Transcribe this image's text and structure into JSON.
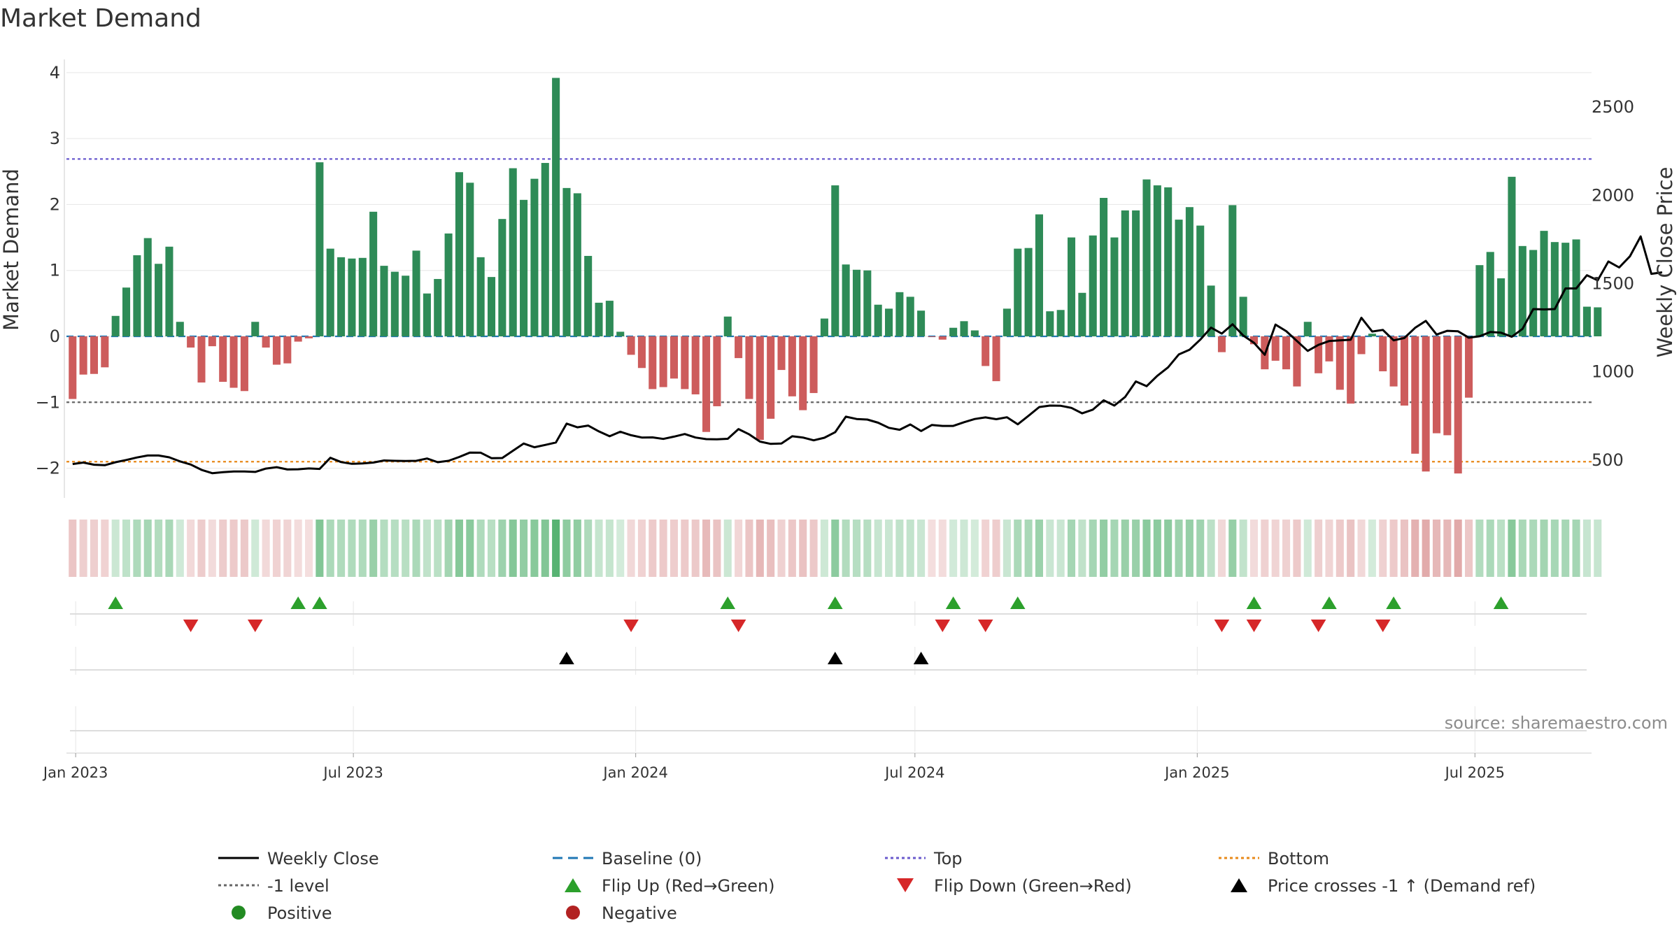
{
  "chart_data": {
    "type": "bar",
    "title": "Market Demand",
    "ylabel": "Market Demand",
    "y2label": "Weekly Close Price",
    "ylim": [
      -2.45,
      4.2
    ],
    "y2lim": [
      285,
      2770
    ],
    "yticks": [
      -2,
      -1,
      0,
      1,
      2,
      3,
      4
    ],
    "y2ticks": [
      500,
      1000,
      1500,
      2000,
      2500
    ],
    "x_range": [
      "2022-12-26",
      "2025-09-15"
    ],
    "x_ticks": [
      {
        "date": "2023-01-01",
        "label": "Jan 2023"
      },
      {
        "date": "2023-07-01",
        "label": "Jul 2023"
      },
      {
        "date": "2024-01-01",
        "label": "Jan 2024"
      },
      {
        "date": "2024-07-01",
        "label": "Jul 2024"
      },
      {
        "date": "2025-01-01",
        "label": "Jan 2025"
      },
      {
        "date": "2025-07-01",
        "label": "Jul 2025"
      }
    ],
    "start_week": "2022-12-30",
    "grid": true,
    "reference_lines": [
      {
        "name": "Baseline (0)",
        "axis": "left",
        "value": 0,
        "color": "#1f77b4",
        "style": "dashed"
      },
      {
        "name": "Top",
        "axis": "left",
        "value": 2.69,
        "color": "#6a5acd",
        "style": "dotted"
      },
      {
        "name": "-1 level",
        "axis": "left",
        "value": -1,
        "color": "#666666",
        "style": "dotted"
      },
      {
        "name": "Bottom",
        "axis": "right",
        "value": 490,
        "color": "#e8891a",
        "style": "dotted"
      }
    ],
    "series": [
      {
        "name": "Market Demand",
        "kind": "bar",
        "axis": "left",
        "colors": {
          "positive": "#2e8b57",
          "negative": "#cd5c5c"
        },
        "values": [
          -0.95,
          -0.58,
          -0.57,
          -0.47,
          0.31,
          0.74,
          1.23,
          1.49,
          1.1,
          1.36,
          0.22,
          -0.17,
          -0.7,
          -0.15,
          -0.69,
          -0.78,
          -0.83,
          0.22,
          -0.17,
          -0.43,
          -0.41,
          -0.08,
          -0.03,
          2.64,
          1.33,
          1.2,
          1.18,
          1.19,
          1.89,
          1.07,
          0.98,
          0.92,
          1.3,
          0.65,
          0.87,
          1.56,
          2.49,
          2.33,
          1.2,
          0.9,
          1.78,
          2.55,
          2.07,
          2.39,
          2.63,
          3.92,
          2.25,
          2.17,
          1.22,
          0.51,
          0.54,
          0.07,
          -0.28,
          -0.48,
          -0.8,
          -0.77,
          -0.64,
          -0.8,
          -0.88,
          -1.45,
          -1.06,
          0.3,
          -0.33,
          -0.95,
          -1.57,
          -1.25,
          -0.51,
          -0.91,
          -1.12,
          -0.86,
          0.27,
          2.29,
          1.09,
          1.01,
          1.0,
          0.48,
          0.42,
          0.67,
          0.6,
          0.39,
          -0.01,
          -0.05,
          0.13,
          0.23,
          0.09,
          -0.45,
          -0.68,
          0.42,
          1.33,
          1.34,
          1.85,
          0.38,
          0.4,
          1.5,
          0.66,
          1.53,
          2.1,
          1.5,
          1.91,
          1.91,
          2.38,
          2.29,
          2.26,
          1.77,
          1.96,
          1.68,
          0.77,
          -0.24,
          1.99,
          0.6,
          -0.12,
          -0.5,
          -0.37,
          -0.5,
          -0.76,
          0.22,
          -0.56,
          -0.38,
          -0.81,
          -1.02,
          -0.27,
          0.04,
          -0.53,
          -0.76,
          -1.05,
          -1.78,
          -2.05,
          -1.47,
          -1.5,
          -2.08,
          -0.93,
          1.08,
          1.28,
          0.88,
          2.42,
          1.37,
          1.31,
          1.6,
          1.43,
          1.42,
          1.47,
          0.45,
          0.44
        ]
      },
      {
        "name": "Weekly Close",
        "kind": "line",
        "axis": "right",
        "color": "#000000",
        "values": [
          477,
          485,
          473,
          470,
          487,
          500,
          514,
          525,
          525,
          515,
          492,
          474,
          444,
          425,
          431,
          435,
          435,
          432,
          451,
          459,
          446,
          447,
          452,
          449,
          512,
          488,
          478,
          480,
          485,
          497,
          495,
          494,
          495,
          508,
          487,
          495,
          517,
          542,
          541,
          510,
          511,
          552,
          593,
          572,
          585,
          599,
          706,
          685,
          695,
          662,
          634,
          660,
          640,
          627,
          628,
          619,
          632,
          647,
          627,
          618,
          617,
          620,
          675,
          645,
          604,
          591,
          593,
          634,
          627,
          611,
          626,
          657,
          745,
          732,
          729,
          711,
          682,
          671,
          701,
          664,
          698,
          693,
          693,
          714,
          732,
          741,
          731,
          742,
          702,
          750,
          800,
          808,
          807,
          795,
          764,
          785,
          838,
          808,
          857,
          945,
          918,
          977,
          1025,
          1098,
          1125,
          1182,
          1250,
          1216,
          1269,
          1205,
          1164,
          1096,
          1267,
          1230,
          1174,
          1118,
          1152,
          1174,
          1178,
          1181,
          1306,
          1228,
          1237,
          1178,
          1191,
          1249,
          1288,
          1211,
          1232,
          1229,
          1193,
          1201,
          1225,
          1221,
          1198,
          1243,
          1355,
          1353,
          1355,
          1472,
          1472,
          1547,
          1518,
          1625,
          1591,
          1654,
          1767,
          1555,
          1563
        ]
      }
    ],
    "flip_up_weeks": [
      4,
      21,
      23,
      61,
      71,
      82,
      88,
      110,
      117,
      123,
      133
    ],
    "flip_down_weeks": [
      11,
      17,
      52,
      62,
      81,
      85,
      107,
      110,
      116,
      122
    ],
    "price_cross_weeks": [
      46,
      71,
      79
    ],
    "legend": {
      "placement": "bottom",
      "items": [
        {
          "label": "Weekly Close",
          "marker": "line-solid",
          "color": "#000000"
        },
        {
          "label": "Baseline (0)",
          "marker": "line-dashed",
          "color": "#1f77b4"
        },
        {
          "label": "Top",
          "marker": "line-dotted",
          "color": "#6a5acd"
        },
        {
          "label": "Bottom",
          "marker": "line-dotted",
          "color": "#e8891a"
        },
        {
          "label": "-1 level",
          "marker": "line-dotted",
          "color": "#666666"
        },
        {
          "label": "Flip Up (Red→Green)",
          "marker": "triangle-up",
          "color": "#2ca02c"
        },
        {
          "label": "Flip Down (Green→Red)",
          "marker": "triangle-down",
          "color": "#d62728"
        },
        {
          "label": "Price crosses -1 ↑ (Demand ref)",
          "marker": "triangle-up",
          "color": "#000000"
        },
        {
          "label": "Positive",
          "marker": "circle",
          "color": "#228b22"
        },
        {
          "label": "Negative",
          "marker": "circle",
          "color": "#b22222"
        }
      ]
    }
  },
  "source_text": "source: sharemaestro.com"
}
